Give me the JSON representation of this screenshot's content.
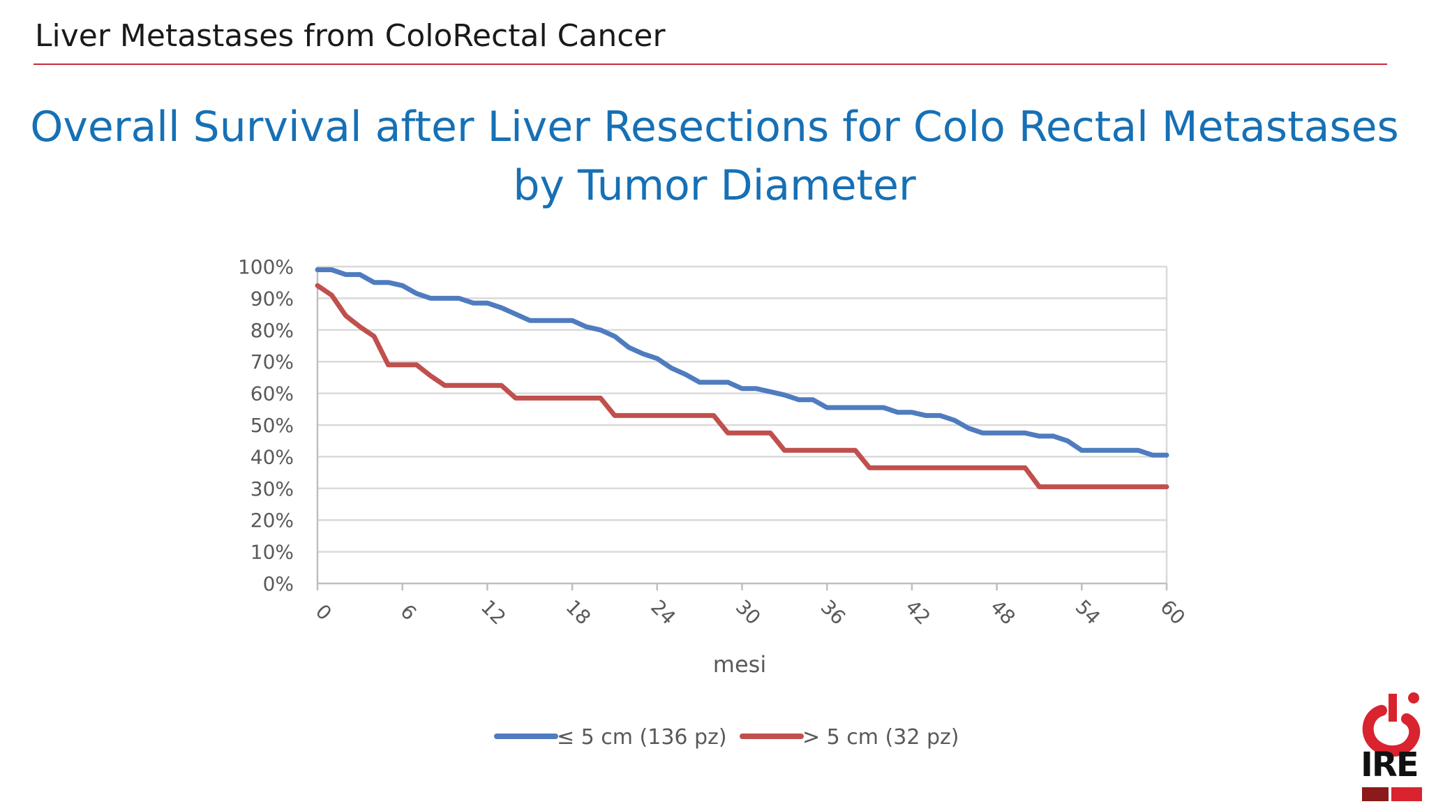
{
  "header": {
    "title": "Liver Metastases from ColoRectal Cancer"
  },
  "slide_title": {
    "line1": "Overall Survival after Liver Resections for Colo Rectal Metastases",
    "line2": "by Tumor Diameter"
  },
  "logo": {
    "text": "IRE",
    "colors": {
      "red": "#d9232e",
      "dark_red": "#8b1a1a"
    }
  },
  "colors": {
    "accent_rule": "#c8283c",
    "title": "#1670b5",
    "series1": "#4f7cbf",
    "series2": "#c0504d",
    "grid": "#d9d9d9"
  },
  "chart_data": {
    "type": "line",
    "xlabel": "mesi",
    "ylabel": "",
    "xlim": [
      0,
      60
    ],
    "ylim": [
      0,
      100
    ],
    "x_ticks": [
      "0",
      "6",
      "12",
      "18",
      "24",
      "30",
      "36",
      "42",
      "48",
      "54",
      "60"
    ],
    "y_ticks": [
      "0%",
      "10%",
      "20%",
      "30%",
      "40%",
      "50%",
      "60%",
      "70%",
      "80%",
      "90%",
      "100%"
    ],
    "grid": "horizontal",
    "legend_position": "bottom",
    "series": [
      {
        "name": "≤ 5 cm (136 pz)",
        "color": "#4f7cbf",
        "points": [
          [
            0,
            99
          ],
          [
            1,
            99
          ],
          [
            2,
            97.5
          ],
          [
            3,
            97.5
          ],
          [
            4,
            95
          ],
          [
            5,
            95
          ],
          [
            6,
            94
          ],
          [
            7,
            91.5
          ],
          [
            8,
            90
          ],
          [
            9,
            90
          ],
          [
            10,
            90
          ],
          [
            11,
            88.5
          ],
          [
            12,
            88.5
          ],
          [
            13,
            87
          ],
          [
            14,
            85
          ],
          [
            15,
            83
          ],
          [
            16,
            83
          ],
          [
            17,
            83
          ],
          [
            18,
            83
          ],
          [
            19,
            81
          ],
          [
            20,
            80
          ],
          [
            21,
            78
          ],
          [
            22,
            74.5
          ],
          [
            23,
            72.5
          ],
          [
            24,
            71
          ],
          [
            25,
            68
          ],
          [
            26,
            66
          ],
          [
            27,
            63.5
          ],
          [
            28,
            63.5
          ],
          [
            29,
            63.5
          ],
          [
            30,
            61.5
          ],
          [
            31,
            61.5
          ],
          [
            32,
            60.5
          ],
          [
            33,
            59.5
          ],
          [
            34,
            58
          ],
          [
            35,
            58
          ],
          [
            36,
            55.5
          ],
          [
            37,
            55.5
          ],
          [
            38,
            55.5
          ],
          [
            39,
            55.5
          ],
          [
            40,
            55.5
          ],
          [
            41,
            54
          ],
          [
            42,
            54
          ],
          [
            43,
            53
          ],
          [
            44,
            53
          ],
          [
            45,
            51.5
          ],
          [
            46,
            49
          ],
          [
            47,
            47.5
          ],
          [
            48,
            47.5
          ],
          [
            49,
            47.5
          ],
          [
            50,
            47.5
          ],
          [
            51,
            46.5
          ],
          [
            52,
            46.5
          ],
          [
            53,
            45
          ],
          [
            54,
            42
          ],
          [
            55,
            42
          ],
          [
            56,
            42
          ],
          [
            57,
            42
          ],
          [
            58,
            42
          ],
          [
            59,
            40.5
          ],
          [
            60,
            40.5
          ]
        ]
      },
      {
        "name": "> 5 cm (32 pz)",
        "color": "#c0504d",
        "points": [
          [
            0,
            94
          ],
          [
            1,
            91
          ],
          [
            2,
            84.5
          ],
          [
            3,
            81
          ],
          [
            4,
            78
          ],
          [
            5,
            69
          ],
          [
            6,
            69
          ],
          [
            7,
            69
          ],
          [
            8,
            65.5
          ],
          [
            9,
            62.5
          ],
          [
            10,
            62.5
          ],
          [
            11,
            62.5
          ],
          [
            12,
            62.5
          ],
          [
            13,
            62.5
          ],
          [
            14,
            58.5
          ],
          [
            15,
            58.5
          ],
          [
            16,
            58.5
          ],
          [
            17,
            58.5
          ],
          [
            18,
            58.5
          ],
          [
            19,
            58.5
          ],
          [
            20,
            58.5
          ],
          [
            21,
            53
          ],
          [
            22,
            53
          ],
          [
            23,
            53
          ],
          [
            24,
            53
          ],
          [
            25,
            53
          ],
          [
            26,
            53
          ],
          [
            27,
            53
          ],
          [
            28,
            53
          ],
          [
            29,
            47.5
          ],
          [
            30,
            47.5
          ],
          [
            31,
            47.5
          ],
          [
            32,
            47.5
          ],
          [
            33,
            42
          ],
          [
            34,
            42
          ],
          [
            35,
            42
          ],
          [
            36,
            42
          ],
          [
            37,
            42
          ],
          [
            38,
            42
          ],
          [
            39,
            36.5
          ],
          [
            40,
            36.5
          ],
          [
            41,
            36.5
          ],
          [
            42,
            36.5
          ],
          [
            43,
            36.5
          ],
          [
            44,
            36.5
          ],
          [
            45,
            36.5
          ],
          [
            46,
            36.5
          ],
          [
            47,
            36.5
          ],
          [
            48,
            36.5
          ],
          [
            49,
            36.5
          ],
          [
            50,
            36.5
          ],
          [
            51,
            30.5
          ],
          [
            52,
            30.5
          ],
          [
            53,
            30.5
          ],
          [
            54,
            30.5
          ],
          [
            55,
            30.5
          ],
          [
            56,
            30.5
          ],
          [
            57,
            30.5
          ],
          [
            58,
            30.5
          ],
          [
            59,
            30.5
          ],
          [
            60,
            30.5
          ]
        ]
      }
    ]
  }
}
